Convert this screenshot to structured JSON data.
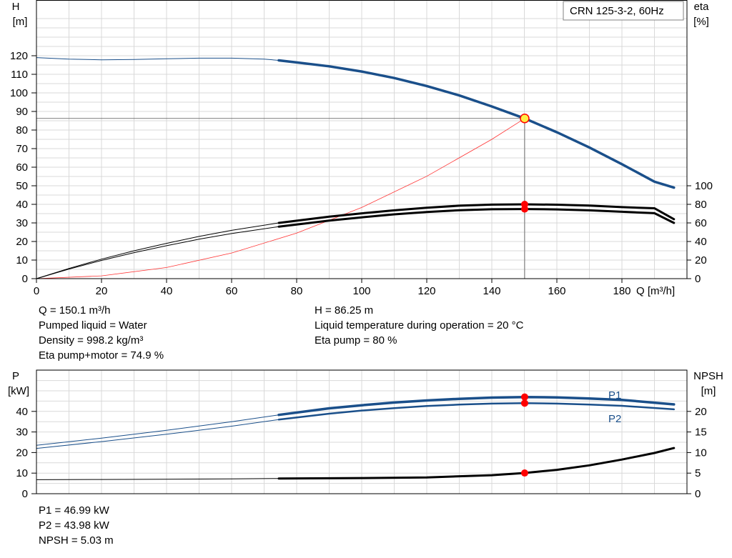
{
  "colors": {
    "head": "#1a4f8a",
    "eta": "#000000",
    "system": "#ff3333",
    "power": "#1a4f8a",
    "npsh": "#000000",
    "grid": "#d9d9d9",
    "marker": "#ff0000",
    "duty_fill": "#ffee44"
  },
  "chart_data": [
    {
      "type": "line",
      "title": "CRN 125-3-2, 60Hz",
      "xlabel": "Q [m³/h]",
      "ylabel": [
        "H",
        "[m]"
      ],
      "y2label": [
        "eta",
        "[%]"
      ],
      "xlim": [
        0,
        200
      ],
      "ylim": [
        0,
        120
      ],
      "y2lim": [
        0,
        100
      ],
      "xticks": [
        0,
        20,
        40,
        60,
        80,
        100,
        120,
        140,
        160,
        180
      ],
      "yticks": [
        0,
        10,
        20,
        30,
        40,
        50,
        60,
        70,
        80,
        90,
        100,
        110,
        120
      ],
      "y2ticks": [
        0,
        20,
        40,
        60,
        80,
        100
      ],
      "grid": true,
      "series": [
        {
          "role": "head",
          "axis": "y",
          "bold_from": 74.5,
          "x": [
            0,
            10,
            20,
            30,
            40,
            50,
            60,
            70,
            74.5,
            80,
            90,
            100,
            110,
            120,
            130,
            140,
            150.1,
            160,
            170,
            180,
            190,
            196
          ],
          "y": [
            119,
            118.2,
            117.8,
            118,
            118.4,
            118.7,
            118.7,
            118.2,
            117.5,
            116.4,
            114.3,
            111.5,
            108,
            103.7,
            98.6,
            92.7,
            86.25,
            78.8,
            70.6,
            61.6,
            52.2,
            49
          ]
        },
        {
          "role": "eta-pump",
          "axis": "y2",
          "bold_from": 74.5,
          "x": [
            0,
            10,
            20,
            30,
            40,
            50,
            60,
            74.5,
            90,
            100,
            110,
            120,
            130,
            140,
            150.1,
            160,
            170,
            180,
            190,
            196
          ],
          "y": [
            0,
            11,
            21,
            30,
            38,
            45.5,
            52,
            60,
            66.8,
            70.3,
            73.5,
            76.3,
            78.5,
            79.7,
            80,
            79.6,
            78.6,
            77,
            75.8,
            64
          ]
        },
        {
          "role": "eta-pump-motor",
          "axis": "y2",
          "bold_from": 74.5,
          "x": [
            0,
            10,
            20,
            30,
            40,
            50,
            60,
            74.5,
            90,
            100,
            110,
            120,
            130,
            140,
            150.1,
            160,
            170,
            180,
            190,
            196
          ],
          "y": [
            0,
            10.3,
            19.6,
            28,
            35.5,
            42.5,
            48.5,
            56,
            62.5,
            66,
            69.2,
            71.7,
            73.7,
            74.7,
            74.9,
            74.5,
            73.5,
            72,
            70.5,
            60
          ]
        },
        {
          "role": "system-curve",
          "axis": "y",
          "x": [
            0,
            20,
            40,
            60,
            80,
            100,
            120,
            140,
            150.1
          ],
          "y": [
            0,
            1.5,
            6,
            13.8,
            24.5,
            38.3,
            55.1,
            75,
            86.25
          ]
        }
      ],
      "duty_point": {
        "x": 150.1,
        "y": 86.25
      },
      "markers": [
        {
          "x": 150.1,
          "y2": 80
        },
        {
          "x": 150.1,
          "y2": 74.9
        }
      ]
    },
    {
      "type": "line",
      "ylabel": [
        "P",
        "[kW]"
      ],
      "y2label": [
        "NPSH",
        "[m]"
      ],
      "xlim": [
        0,
        200
      ],
      "ylim": [
        0,
        50
      ],
      "y2lim": [
        0,
        25
      ],
      "yticks": [
        0,
        10,
        20,
        30,
        40
      ],
      "y2ticks": [
        0,
        5,
        10,
        15,
        20
      ],
      "grid": true,
      "series": [
        {
          "name": "P1",
          "axis": "y",
          "bold_from": 74.5,
          "x": [
            0,
            20,
            40,
            60,
            74.5,
            90,
            100,
            110,
            120,
            130,
            140,
            150.1,
            160,
            170,
            180,
            196
          ],
          "y": [
            23.5,
            27,
            30.8,
            35,
            38.3,
            41.5,
            43,
            44.3,
            45.3,
            46.1,
            46.7,
            46.99,
            46.8,
            46.3,
            45.6,
            43.4
          ]
        },
        {
          "name": "P2",
          "axis": "y",
          "bold_from": 74.5,
          "x": [
            0,
            20,
            40,
            60,
            74.5,
            90,
            100,
            110,
            120,
            130,
            140,
            150.1,
            160,
            170,
            180,
            196
          ],
          "y": [
            22,
            25.3,
            28.9,
            32.8,
            36,
            38.9,
            40.4,
            41.6,
            42.6,
            43.3,
            43.8,
            43.98,
            43.8,
            43.3,
            42.7,
            41
          ]
        },
        {
          "name": "NPSH",
          "axis": "y2",
          "bold_from": 74.5,
          "x": [
            0,
            20,
            40,
            60,
            74.5,
            100,
            120,
            140,
            150.1,
            160,
            170,
            180,
            190,
            196
          ],
          "y": [
            3.4,
            3.45,
            3.5,
            3.6,
            3.7,
            3.8,
            3.95,
            4.5,
            5.03,
            5.8,
            6.9,
            8.3,
            9.9,
            11.1
          ]
        }
      ],
      "markers": [
        {
          "x": 150.1,
          "y": 46.99
        },
        {
          "x": 150.1,
          "y": 43.98
        },
        {
          "x": 150.1,
          "y2": 5.03
        }
      ]
    }
  ],
  "info_top": {
    "left": [
      "Q = 150.1 m³/h",
      "Pumped liquid = Water",
      "Density = 998.2 kg/m³",
      "Eta pump+motor = 74.9 %"
    ],
    "right": [
      "H = 86.25 m",
      "Liquid temperature during operation = 20 °C",
      "Eta pump = 80 %"
    ]
  },
  "info_bottom": [
    "P1 = 46.99 kW",
    "P2 = 43.98 kW",
    "NPSH = 5.03 m"
  ]
}
